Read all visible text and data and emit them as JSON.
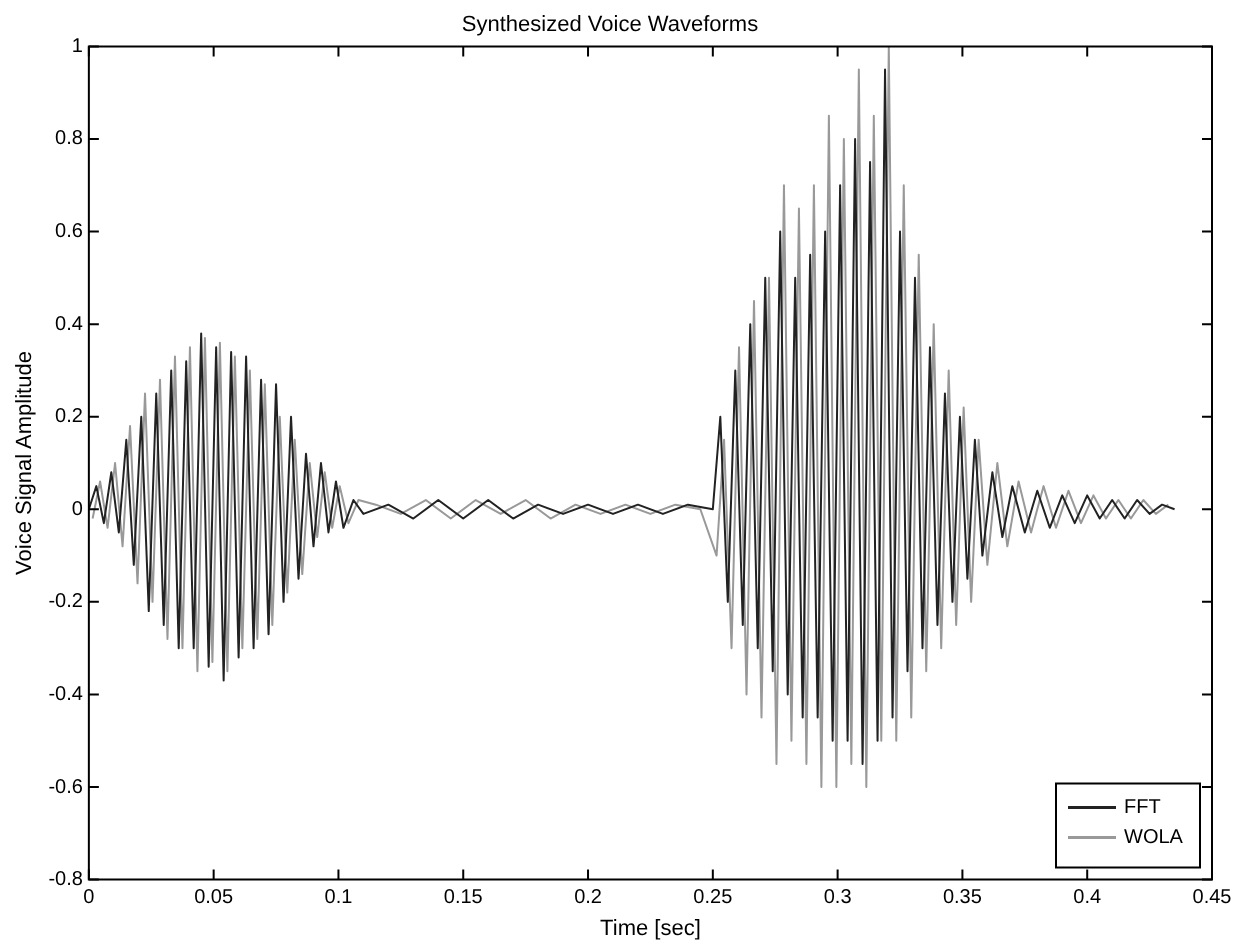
{
  "chart_data": {
    "type": "line",
    "title": "Synthesized Voice Waveforms",
    "xlabel": "Time [sec]",
    "ylabel": "Voice Signal Amplitude",
    "xlim": [
      0,
      0.45
    ],
    "xticks": [
      0,
      0.05,
      0.1,
      0.15,
      0.2,
      0.25,
      0.3,
      0.35,
      0.4,
      0.45
    ],
    "ylim": [
      -0.8,
      1
    ],
    "yticks": [
      -0.8,
      -0.6,
      -0.4,
      -0.2,
      0,
      0.2,
      0.4,
      0.6,
      0.8,
      1
    ],
    "grid": false,
    "legend": "bottom right",
    "marker": "none",
    "line_style": "solid",
    "series": [
      {
        "name": "FFT",
        "color": "#222222",
        "x": [
          0,
          0.003,
          0.006,
          0.009,
          0.012,
          0.015,
          0.018,
          0.021,
          0.024,
          0.027,
          0.03,
          0.033,
          0.036,
          0.039,
          0.042,
          0.045,
          0.048,
          0.051,
          0.054,
          0.057,
          0.06,
          0.063,
          0.066,
          0.069,
          0.072,
          0.075,
          0.078,
          0.081,
          0.084,
          0.087,
          0.09,
          0.093,
          0.096,
          0.099,
          0.102,
          0.106,
          0.11,
          0.12,
          0.13,
          0.14,
          0.15,
          0.16,
          0.17,
          0.18,
          0.19,
          0.2,
          0.21,
          0.22,
          0.23,
          0.24,
          0.25,
          0.253,
          0.256,
          0.259,
          0.262,
          0.265,
          0.268,
          0.271,
          0.274,
          0.277,
          0.28,
          0.283,
          0.286,
          0.289,
          0.292,
          0.295,
          0.298,
          0.301,
          0.304,
          0.307,
          0.31,
          0.313,
          0.316,
          0.319,
          0.322,
          0.325,
          0.328,
          0.331,
          0.334,
          0.337,
          0.34,
          0.343,
          0.346,
          0.349,
          0.352,
          0.355,
          0.358,
          0.362,
          0.366,
          0.37,
          0.375,
          0.38,
          0.385,
          0.39,
          0.395,
          0.4,
          0.405,
          0.41,
          0.415,
          0.42,
          0.425,
          0.43,
          0.435
        ],
        "values": [
          0,
          0.05,
          -0.03,
          0.08,
          -0.05,
          0.15,
          -0.12,
          0.2,
          -0.22,
          0.25,
          -0.25,
          0.3,
          -0.3,
          0.32,
          -0.3,
          0.38,
          -0.34,
          0.35,
          -0.37,
          0.34,
          -0.32,
          0.33,
          -0.3,
          0.28,
          -0.27,
          0.27,
          -0.2,
          0.2,
          -0.15,
          0.12,
          -0.08,
          0.1,
          -0.05,
          0.06,
          -0.04,
          0.02,
          -0.01,
          0.01,
          -0.02,
          0.02,
          -0.02,
          0.02,
          -0.02,
          0.01,
          -0.01,
          0.01,
          -0.01,
          0.01,
          -0.01,
          0.01,
          0,
          0.2,
          -0.2,
          0.3,
          -0.25,
          0.4,
          -0.3,
          0.5,
          -0.35,
          0.6,
          -0.4,
          0.5,
          -0.45,
          0.55,
          -0.45,
          0.6,
          -0.5,
          0.7,
          -0.5,
          0.8,
          -0.55,
          0.75,
          -0.5,
          0.95,
          -0.45,
          0.6,
          -0.35,
          0.5,
          -0.3,
          0.35,
          -0.25,
          0.25,
          -0.2,
          0.2,
          -0.15,
          0.15,
          -0.1,
          0.08,
          -0.06,
          0.05,
          -0.05,
          0.04,
          -0.04,
          0.03,
          -0.03,
          0.03,
          -0.02,
          0.02,
          -0.02,
          0.02,
          -0.01,
          0.01,
          0
        ]
      },
      {
        "name": "WOLA",
        "color": "#999999",
        "x": [
          0.0015,
          0.0045,
          0.0075,
          0.0105,
          0.0135,
          0.0165,
          0.0195,
          0.0225,
          0.0255,
          0.0285,
          0.0315,
          0.0345,
          0.0375,
          0.0405,
          0.0435,
          0.0465,
          0.0495,
          0.0525,
          0.0555,
          0.0585,
          0.0615,
          0.0645,
          0.0675,
          0.0705,
          0.0735,
          0.0765,
          0.0795,
          0.0825,
          0.0855,
          0.0885,
          0.0915,
          0.0945,
          0.0975,
          0.1005,
          0.104,
          0.108,
          0.115,
          0.125,
          0.135,
          0.145,
          0.155,
          0.165,
          0.175,
          0.185,
          0.195,
          0.205,
          0.215,
          0.225,
          0.235,
          0.245,
          0.2515,
          0.2545,
          0.2575,
          0.2605,
          0.2635,
          0.2665,
          0.2695,
          0.2725,
          0.2755,
          0.2785,
          0.2815,
          0.2845,
          0.2875,
          0.2905,
          0.2935,
          0.2965,
          0.2995,
          0.3025,
          0.3055,
          0.3085,
          0.3115,
          0.3145,
          0.3175,
          0.3205,
          0.3235,
          0.3265,
          0.3295,
          0.3325,
          0.3355,
          0.3385,
          0.3415,
          0.3445,
          0.3475,
          0.3505,
          0.3535,
          0.3565,
          0.36,
          0.364,
          0.368,
          0.3725,
          0.3775,
          0.3825,
          0.3875,
          0.3925,
          0.3975,
          0.4025,
          0.4075,
          0.4125,
          0.4175,
          0.4225,
          0.4275,
          0.4325
        ],
        "values": [
          -0.02,
          0.06,
          -0.04,
          0.1,
          -0.08,
          0.18,
          -0.16,
          0.25,
          -0.2,
          0.28,
          -0.28,
          0.33,
          -0.3,
          0.35,
          -0.35,
          0.37,
          -0.33,
          0.36,
          -0.35,
          0.33,
          -0.3,
          0.3,
          -0.28,
          0.27,
          -0.25,
          0.2,
          -0.18,
          0.15,
          -0.14,
          0.1,
          -0.06,
          0.08,
          -0.04,
          0.05,
          -0.03,
          0.02,
          0.01,
          -0.01,
          0.02,
          -0.02,
          0.02,
          -0.01,
          0.02,
          -0.02,
          0.01,
          -0.01,
          0.01,
          -0.01,
          0.01,
          0,
          -0.1,
          0.15,
          -0.3,
          0.35,
          -0.4,
          0.45,
          -0.45,
          0.5,
          -0.55,
          0.7,
          -0.5,
          0.65,
          -0.55,
          0.7,
          -0.6,
          0.85,
          -0.6,
          0.8,
          -0.55,
          0.95,
          -0.6,
          0.85,
          -0.5,
          1,
          -0.5,
          0.7,
          -0.45,
          0.55,
          -0.35,
          0.4,
          -0.3,
          0.3,
          -0.25,
          0.22,
          -0.2,
          0.15,
          -0.12,
          0.1,
          -0.08,
          0.06,
          -0.05,
          0.05,
          -0.04,
          0.04,
          -0.03,
          0.03,
          -0.02,
          0.02,
          -0.02,
          0.02,
          -0.01,
          0.01
        ]
      }
    ]
  }
}
